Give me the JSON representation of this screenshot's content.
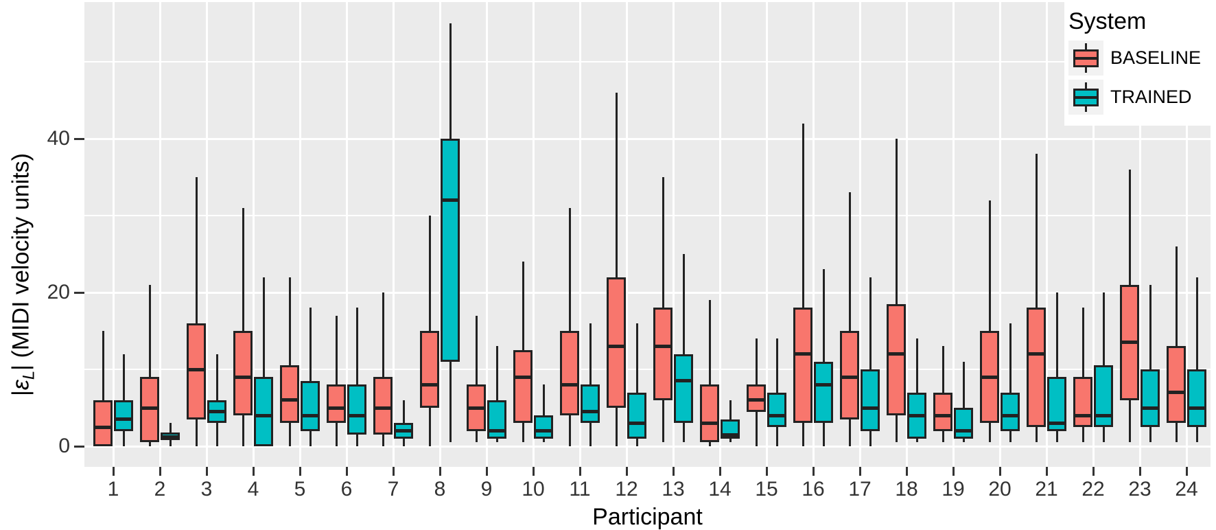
{
  "axes": {
    "x": {
      "title": "Participant"
    },
    "y": {
      "title_parts": {
        "open_bar": "|",
        "epsilon": "ε",
        "subscript": "L",
        "close": "| (MIDI velocity units)"
      },
      "tick_labels": [
        "0",
        "20",
        "40"
      ]
    }
  },
  "legend": {
    "title": "System",
    "items": [
      {
        "label": "BASELINE",
        "color": "#F8766D"
      },
      {
        "label": "TRAINED",
        "color": "#00BFC4"
      }
    ]
  },
  "colors": {
    "baseline_fill": "#F8766D",
    "trained_fill": "#00BFC4",
    "box_stroke": "#222222",
    "panel_background": "#EBEBEB",
    "gridline": "#FFFFFF",
    "tick_text": "#333333",
    "title_text": "#000000"
  },
  "chart_data": {
    "type": "boxplot",
    "title": "",
    "xlabel": "Participant",
    "ylabel": "|εL| (MIDI velocity units)",
    "ylim": [
      -2.7,
      57.5
    ],
    "y_ticks": [
      0,
      20,
      40
    ],
    "y_minor_gridlines": [
      10,
      30,
      50
    ],
    "grid": true,
    "legend_position": "top-right",
    "categories": [
      "1",
      "2",
      "3",
      "4",
      "5",
      "6",
      "7",
      "8",
      "9",
      "10",
      "11",
      "12",
      "13",
      "14",
      "15",
      "16",
      "17",
      "18",
      "19",
      "20",
      "21",
      "22",
      "23",
      "24"
    ],
    "box_value_order": [
      "whisker_low",
      "q1",
      "median",
      "q3",
      "whisker_high"
    ],
    "series": [
      {
        "name": "BASELINE",
        "color": "#F8766D",
        "boxes": [
          [
            0,
            0,
            2.5,
            6,
            15
          ],
          [
            0,
            0.5,
            5,
            9,
            21
          ],
          [
            0,
            3.5,
            10,
            16,
            35
          ],
          [
            0,
            4,
            9,
            15,
            31
          ],
          [
            0,
            3,
            6,
            10.5,
            22
          ],
          [
            0,
            3,
            5,
            8,
            17
          ],
          [
            0,
            1.5,
            5,
            9,
            20
          ],
          [
            0,
            5,
            8,
            15,
            30
          ],
          [
            0.5,
            2,
            5,
            8,
            17
          ],
          [
            0.5,
            3,
            9,
            12.5,
            24
          ],
          [
            0,
            4,
            8,
            15,
            31
          ],
          [
            0,
            5,
            13,
            22,
            46
          ],
          [
            0.5,
            6,
            13,
            18,
            35
          ],
          [
            0,
            0.5,
            3,
            8,
            19
          ],
          [
            0,
            4.5,
            6,
            8,
            14
          ],
          [
            0,
            3,
            12,
            18,
            42
          ],
          [
            0,
            3.5,
            9,
            15,
            33
          ],
          [
            0.5,
            4,
            12,
            18.5,
            40
          ],
          [
            0.5,
            2,
            4,
            7,
            13
          ],
          [
            0.5,
            3,
            9,
            15,
            32
          ],
          [
            0.5,
            2.5,
            12,
            18,
            38
          ],
          [
            0.5,
            2.5,
            4,
            9,
            18
          ],
          [
            0.5,
            6,
            13.5,
            21,
            36
          ],
          [
            0.5,
            3,
            7,
            13,
            26
          ]
        ]
      },
      {
        "name": "TRAINED",
        "color": "#00BFC4",
        "boxes": [
          [
            0,
            2,
            3.5,
            6,
            12
          ],
          [
            0,
            0.8,
            1.2,
            1.8,
            3
          ],
          [
            0,
            3,
            4.5,
            6,
            12
          ],
          [
            0,
            0,
            4,
            9,
            22
          ],
          [
            0,
            2,
            4,
            8.5,
            18
          ],
          [
            0,
            1.5,
            4,
            8,
            18
          ],
          [
            0,
            1,
            2,
            3,
            6
          ],
          [
            0.5,
            11,
            32,
            40,
            55
          ],
          [
            0.5,
            1,
            2,
            6,
            13
          ],
          [
            0.5,
            1,
            2,
            4,
            8
          ],
          [
            0,
            3,
            4.5,
            8,
            16
          ],
          [
            0,
            1,
            3,
            7,
            16
          ],
          [
            0.5,
            3,
            8.5,
            12,
            25
          ],
          [
            0.5,
            1,
            1.5,
            3.5,
            6
          ],
          [
            0,
            2.5,
            4,
            7,
            14
          ],
          [
            0,
            3,
            8,
            11,
            23
          ],
          [
            0,
            2,
            5,
            10,
            22
          ],
          [
            0.5,
            1,
            4,
            7,
            14
          ],
          [
            0.5,
            1,
            2,
            5,
            11
          ],
          [
            0.5,
            2,
            4,
            7,
            16
          ],
          [
            0.5,
            2,
            3,
            9,
            20
          ],
          [
            0.5,
            2.5,
            4,
            10.5,
            20
          ],
          [
            0.5,
            2.5,
            5,
            10,
            21
          ],
          [
            0.5,
            2.5,
            5,
            10,
            22
          ]
        ]
      }
    ]
  }
}
